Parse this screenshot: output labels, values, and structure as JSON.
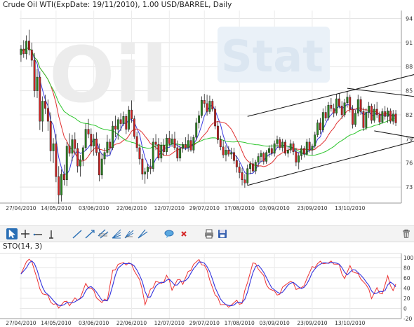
{
  "chart_data": [
    {
      "type": "candlestick",
      "title": "Crude Oil WTI(ExpDate: 19/11/2010), 1.00 USD/BARREL, Daily",
      "watermark": "OilStat",
      "yticks": [
        "94",
        "91",
        "88",
        "85",
        "82",
        "79",
        "76",
        "73"
      ],
      "ylim": [
        71,
        95
      ],
      "xticks": [
        "27/04/2010",
        "14/05/2010",
        "03/06/2010",
        "22/06/2010",
        "12/07/2010",
        "29/07/2010",
        "17/08/2010",
        "03/09/2010",
        "23/09/2010",
        "13/10/2010"
      ],
      "xtick_index": [
        0,
        13,
        27,
        41,
        55,
        68,
        81,
        94,
        108,
        122
      ],
      "colors": {
        "up": "#2a8a1f",
        "down": "#d32222",
        "ma_fast": "#3b3be0",
        "ma_mid": "#e03030",
        "ma_slow": "#2cc52c",
        "channel": "#111111"
      },
      "channel_lines": [
        {
          "x": [
            84,
            148
          ],
          "y": [
            73.2,
            78.9
          ]
        },
        {
          "x": [
            84,
            148
          ],
          "y": [
            81.8,
            87.2
          ]
        },
        {
          "x": [
            121,
            148
          ],
          "y": [
            85.3,
            84.2
          ]
        },
        {
          "x": [
            131,
            148
          ],
          "y": [
            80.0,
            79.0
          ]
        }
      ],
      "ohlc": [
        [
          89.5,
          90.7,
          88.6,
          90.2
        ],
        [
          90.2,
          91.3,
          89.1,
          89.6
        ],
        [
          89.6,
          91.9,
          88.9,
          91.2
        ],
        [
          91.2,
          92.6,
          89.4,
          90.1
        ],
        [
          90.1,
          91.0,
          88.0,
          88.8
        ],
        [
          88.8,
          89.7,
          84.2,
          85.0
        ],
        [
          85.0,
          87.7,
          84.1,
          86.7
        ],
        [
          86.7,
          87.4,
          80.1,
          81.2
        ],
        [
          81.2,
          84.3,
          79.9,
          83.7
        ],
        [
          83.7,
          84.5,
          82.1,
          82.8
        ],
        [
          82.8,
          83.9,
          80.0,
          81.2
        ],
        [
          81.2,
          82.3,
          76.2,
          77.5
        ],
        [
          77.5,
          79.1,
          76.0,
          78.4
        ],
        [
          78.4,
          79.6,
          73.6,
          74.3
        ],
        [
          74.3,
          75.6,
          70.9,
          72.0
        ],
        [
          72.0,
          75.2,
          71.2,
          74.6
        ],
        [
          74.6,
          75.8,
          73.2,
          73.9
        ],
        [
          73.9,
          78.6,
          73.1,
          78.1
        ],
        [
          78.1,
          79.7,
          76.8,
          77.2
        ],
        [
          77.2,
          79.5,
          76.2,
          78.9
        ],
        [
          78.9,
          79.8,
          77.1,
          77.8
        ],
        [
          77.8,
          78.5,
          74.8,
          75.6
        ],
        [
          75.6,
          77.0,
          74.3,
          76.4
        ],
        [
          76.4,
          78.2,
          75.6,
          77.9
        ],
        [
          77.9,
          80.9,
          77.5,
          80.2
        ],
        [
          80.2,
          81.5,
          79.1,
          79.6
        ],
        [
          79.6,
          80.3,
          77.4,
          78.1
        ],
        [
          78.1,
          79.6,
          76.9,
          79.0
        ],
        [
          79.0,
          79.8,
          76.9,
          77.3
        ],
        [
          77.3,
          78.4,
          73.7,
          74.5
        ],
        [
          74.5,
          77.2,
          74.0,
          76.5
        ],
        [
          76.5,
          77.9,
          75.8,
          77.3
        ],
        [
          77.3,
          79.5,
          76.9,
          78.6
        ],
        [
          78.6,
          79.0,
          77.0,
          77.9
        ],
        [
          77.9,
          81.2,
          77.6,
          80.6
        ],
        [
          80.6,
          81.9,
          79.2,
          80.2
        ],
        [
          80.2,
          81.7,
          78.9,
          81.4
        ],
        [
          81.4,
          82.2,
          80.0,
          80.9
        ],
        [
          80.9,
          82.4,
          80.6,
          81.8
        ],
        [
          81.8,
          82.1,
          79.6,
          80.2
        ],
        [
          80.2,
          83.1,
          79.9,
          82.6
        ],
        [
          82.6,
          83.8,
          81.0,
          81.5
        ],
        [
          81.5,
          81.9,
          79.0,
          79.3
        ],
        [
          79.3,
          79.9,
          77.4,
          77.9
        ],
        [
          77.9,
          78.4,
          75.8,
          76.5
        ],
        [
          76.5,
          77.1,
          73.9,
          74.6
        ],
        [
          74.6,
          75.4,
          73.4,
          74.9
        ],
        [
          74.9,
          75.9,
          74.0,
          75.5
        ],
        [
          75.5,
          76.5,
          74.6,
          75.3
        ],
        [
          75.3,
          79.1,
          74.9,
          78.6
        ],
        [
          78.6,
          79.6,
          77.6,
          78.3
        ],
        [
          78.3,
          79.1,
          76.3,
          76.6
        ],
        [
          76.6,
          78.6,
          76.1,
          78.2
        ],
        [
          78.2,
          79.0,
          76.9,
          77.4
        ],
        [
          77.4,
          79.6,
          77.0,
          79.1
        ],
        [
          79.1,
          80.0,
          78.1,
          78.4
        ],
        [
          78.4,
          79.6,
          78.0,
          79.0
        ],
        [
          79.0,
          79.9,
          77.6,
          77.9
        ],
        [
          77.9,
          78.8,
          76.2,
          76.6
        ],
        [
          76.6,
          78.3,
          76.2,
          77.8
        ],
        [
          77.8,
          78.6,
          77.3,
          78.3
        ],
        [
          78.3,
          79.2,
          77.6,
          77.9
        ],
        [
          77.9,
          79.6,
          77.4,
          78.8
        ],
        [
          78.8,
          79.3,
          77.4,
          77.6
        ],
        [
          77.6,
          79.5,
          77.2,
          79.2
        ],
        [
          79.2,
          81.6,
          78.8,
          81.0
        ],
        [
          81.0,
          82.5,
          80.3,
          81.9
        ],
        [
          81.9,
          84.3,
          81.6,
          83.8
        ],
        [
          83.8,
          84.6,
          82.9,
          83.4
        ],
        [
          83.4,
          84.5,
          81.9,
          82.4
        ],
        [
          82.4,
          84.4,
          82.1,
          83.7
        ],
        [
          83.7,
          84.0,
          82.4,
          82.7
        ],
        [
          82.7,
          83.1,
          80.2,
          80.6
        ],
        [
          80.6,
          81.2,
          78.4,
          78.9
        ],
        [
          78.9,
          79.4,
          77.6,
          78.0
        ],
        [
          78.0,
          78.8,
          76.6,
          77.0
        ],
        [
          77.0,
          78.2,
          76.2,
          77.6
        ],
        [
          77.6,
          78.1,
          76.8,
          77.1
        ],
        [
          77.1,
          77.9,
          76.5,
          77.3
        ],
        [
          77.3,
          77.9,
          75.9,
          76.3
        ],
        [
          76.3,
          76.9,
          74.8,
          75.5
        ],
        [
          75.5,
          76.0,
          74.1,
          74.8
        ],
        [
          74.8,
          75.4,
          73.2,
          73.9
        ],
        [
          73.9,
          74.6,
          72.9,
          73.5
        ],
        [
          73.5,
          75.8,
          73.2,
          75.3
        ],
        [
          75.3,
          76.2,
          74.6,
          75.9
        ],
        [
          75.9,
          76.6,
          74.8,
          75.0
        ],
        [
          75.0,
          76.4,
          74.6,
          76.1
        ],
        [
          76.1,
          77.2,
          75.5,
          76.8
        ],
        [
          76.8,
          77.6,
          76.1,
          77.2
        ],
        [
          77.2,
          77.4,
          75.8,
          76.2
        ],
        [
          76.2,
          77.6,
          75.9,
          77.3
        ],
        [
          77.3,
          78.2,
          76.7,
          77.8
        ],
        [
          77.8,
          78.3,
          76.9,
          77.2
        ],
        [
          77.2,
          78.8,
          76.8,
          78.4
        ],
        [
          78.4,
          79.4,
          77.9,
          78.9
        ],
        [
          78.9,
          79.2,
          77.6,
          77.9
        ],
        [
          77.9,
          79.0,
          77.4,
          78.6
        ],
        [
          78.6,
          78.9,
          76.9,
          77.2
        ],
        [
          77.2,
          78.0,
          76.7,
          77.6
        ],
        [
          77.6,
          78.9,
          77.2,
          78.4
        ],
        [
          78.4,
          78.7,
          77.0,
          77.4
        ],
        [
          77.4,
          77.9,
          75.6,
          76.1
        ],
        [
          76.1,
          77.3,
          75.2,
          76.9
        ],
        [
          76.9,
          78.2,
          76.4,
          77.8
        ],
        [
          77.8,
          78.1,
          76.7,
          77.1
        ],
        [
          77.1,
          79.0,
          76.9,
          78.6
        ],
        [
          78.6,
          79.1,
          77.3,
          77.6
        ],
        [
          77.6,
          78.4,
          77.0,
          78.1
        ],
        [
          78.1,
          79.9,
          77.8,
          79.5
        ],
        [
          79.5,
          81.4,
          79.2,
          81.0
        ],
        [
          81.0,
          81.6,
          79.6,
          80.1
        ],
        [
          80.1,
          82.8,
          79.8,
          82.3
        ],
        [
          82.3,
          83.1,
          81.2,
          81.6
        ],
        [
          81.6,
          83.6,
          81.3,
          83.2
        ],
        [
          83.2,
          84.1,
          82.4,
          82.8
        ],
        [
          82.8,
          83.4,
          81.7,
          82.2
        ],
        [
          82.2,
          84.6,
          81.9,
          84.0
        ],
        [
          84.0,
          84.7,
          82.8,
          83.1
        ],
        [
          83.1,
          83.7,
          81.5,
          82.0
        ],
        [
          82.0,
          84.0,
          81.7,
          83.5
        ],
        [
          83.5,
          84.9,
          82.9,
          84.2
        ],
        [
          84.2,
          84.5,
          82.3,
          82.7
        ],
        [
          82.7,
          83.2,
          80.3,
          80.8
        ],
        [
          80.8,
          82.6,
          80.5,
          82.2
        ],
        [
          82.2,
          84.5,
          81.8,
          83.9
        ],
        [
          83.9,
          84.3,
          82.0,
          82.4
        ],
        [
          82.4,
          82.9,
          80.0,
          80.4
        ],
        [
          80.4,
          82.8,
          80.1,
          82.3
        ],
        [
          82.3,
          83.6,
          81.6,
          83.1
        ],
        [
          83.1,
          83.4,
          80.9,
          81.3
        ],
        [
          81.3,
          83.3,
          81.0,
          82.7
        ],
        [
          82.7,
          83.6,
          81.6,
          82.0
        ],
        [
          82.0,
          82.4,
          80.7,
          81.1
        ],
        [
          81.1,
          82.8,
          80.9,
          82.4
        ],
        [
          82.4,
          83.1,
          81.4,
          81.8
        ],
        [
          81.8,
          82.9,
          81.0,
          82.5
        ],
        [
          82.5,
          82.8,
          80.9,
          81.2
        ],
        [
          81.2,
          82.6,
          80.8,
          82.1
        ],
        [
          82.1,
          82.6,
          80.6,
          81.0
        ]
      ]
    },
    {
      "type": "line",
      "title": "STO(14, 3)",
      "yticks": [
        "100",
        "80",
        "60",
        "40",
        "20",
        "0",
        "-20"
      ],
      "ylim": [
        -20,
        108
      ],
      "xticks": [
        "27/04/2010",
        "14/05/2010",
        "03/06/2010",
        "22/06/2010",
        "12/07/2010",
        "29/07/2010",
        "17/08/2010",
        "03/09/2010",
        "23/09/2010",
        "13/10/2010"
      ],
      "colors": {
        "k": "#ee3333",
        "d": "#3333dd"
      },
      "anchors": [
        [
          0,
          72
        ],
        [
          2,
          90
        ],
        [
          4,
          95
        ],
        [
          6,
          55
        ],
        [
          8,
          30
        ],
        [
          10,
          22
        ],
        [
          12,
          8
        ],
        [
          14,
          5
        ],
        [
          16,
          12
        ],
        [
          18,
          8
        ],
        [
          20,
          18
        ],
        [
          22,
          22
        ],
        [
          24,
          45
        ],
        [
          26,
          40
        ],
        [
          28,
          25
        ],
        [
          30,
          10
        ],
        [
          32,
          18
        ],
        [
          34,
          72
        ],
        [
          36,
          88
        ],
        [
          38,
          86
        ],
        [
          40,
          90
        ],
        [
          42,
          78
        ],
        [
          44,
          55
        ],
        [
          46,
          10
        ],
        [
          48,
          35
        ],
        [
          50,
          55
        ],
        [
          52,
          45
        ],
        [
          54,
          65
        ],
        [
          56,
          40
        ],
        [
          58,
          55
        ],
        [
          60,
          50
        ],
        [
          62,
          70
        ],
        [
          64,
          88
        ],
        [
          66,
          92
        ],
        [
          68,
          85
        ],
        [
          70,
          60
        ],
        [
          72,
          25
        ],
        [
          74,
          10
        ],
        [
          76,
          5
        ],
        [
          78,
          8
        ],
        [
          80,
          12
        ],
        [
          82,
          10
        ],
        [
          84,
          55
        ],
        [
          86,
          88
        ],
        [
          88,
          80
        ],
        [
          90,
          62
        ],
        [
          92,
          40
        ],
        [
          94,
          30
        ],
        [
          96,
          28
        ],
        [
          98,
          50
        ],
        [
          100,
          52
        ],
        [
          102,
          40
        ],
        [
          104,
          38
        ],
        [
          106,
          60
        ],
        [
          108,
          78
        ],
        [
          110,
          88
        ],
        [
          112,
          92
        ],
        [
          114,
          88
        ],
        [
          116,
          90
        ],
        [
          118,
          84
        ],
        [
          120,
          60
        ],
        [
          122,
          80
        ],
        [
          124,
          70
        ],
        [
          126,
          62
        ],
        [
          128,
          45
        ],
        [
          130,
          22
        ],
        [
          132,
          38
        ],
        [
          134,
          30
        ],
        [
          136,
          60
        ],
        [
          138,
          35
        ],
        [
          140,
          55
        ],
        [
          142,
          60
        ],
        [
          144,
          42
        ],
        [
          146,
          45
        ],
        [
          148,
          40
        ]
      ]
    }
  ],
  "toolbar": {
    "icons": [
      "cursor-select-icon",
      "crosshair-icon",
      "horizontal-line-icon",
      "vertical-line-icon",
      "trend-line-icon",
      "ray-line-icon",
      "parallel-channel-icon",
      "fibonacci-fan-icon",
      "andrews-pitchfork-icon",
      "gann-fan-icon",
      "text-note-icon",
      "delete-drawing-icon",
      "print-icon",
      "save-icon",
      "trash-icon"
    ]
  }
}
